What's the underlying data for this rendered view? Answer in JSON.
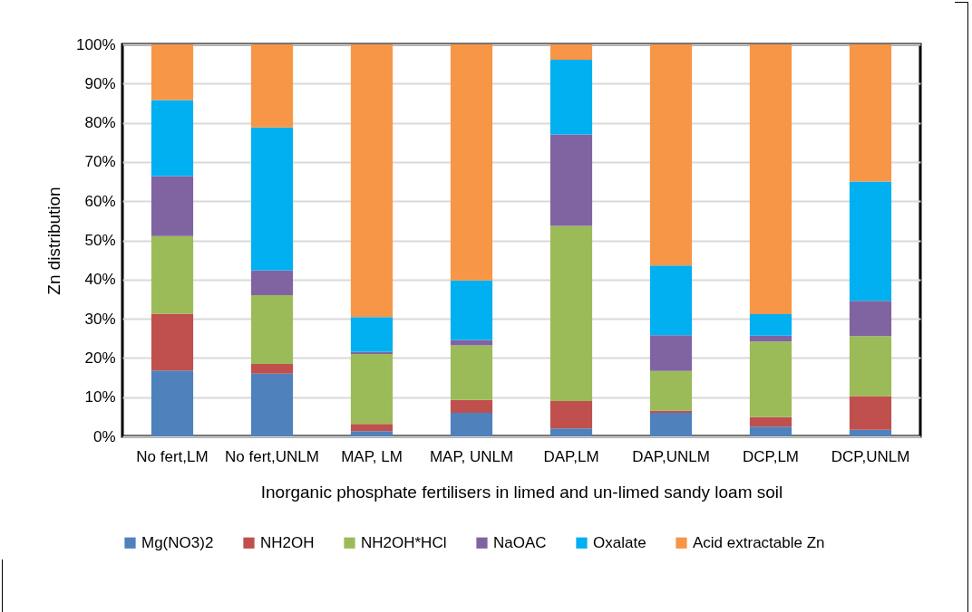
{
  "chart_data": {
    "type": "bar",
    "stacked": true,
    "xlabel": "Inorganic phosphate fertilisers in limed and un-limed sandy loam soil",
    "ylabel": "Zn distribution",
    "categories": [
      "No fert,LM",
      "No fert,UNLM",
      "MAP, LM",
      "MAP, UNLM",
      "DAP,LM",
      "DAP,UNLM",
      "DCP,LM",
      "DCP,UNLM"
    ],
    "series": [
      {
        "name": "Mg(NO3)2",
        "color": "#4f81bd",
        "values": [
          16.8,
          16.0,
          1.3,
          6.0,
          2.0,
          6.0,
          2.5,
          1.7
        ]
      },
      {
        "name": "NH2OH",
        "color": "#c0504d",
        "values": [
          14.5,
          2.5,
          1.9,
          3.3,
          7.0,
          0.6,
          2.4,
          8.6
        ]
      },
      {
        "name": "NH2OH*HCl",
        "color": "#9bbb59",
        "values": [
          19.8,
          17.5,
          17.8,
          13.9,
          44.7,
          10.1,
          19.3,
          15.3
        ]
      },
      {
        "name": "NaOAC",
        "color": "#8064a2",
        "values": [
          15.3,
          6.3,
          0.6,
          1.4,
          23.3,
          9.1,
          1.5,
          9.0
        ]
      },
      {
        "name": "Oxalate",
        "color": "#00b0f0",
        "values": [
          19.4,
          36.5,
          8.8,
          15.2,
          19.1,
          17.8,
          5.5,
          30.4
        ]
      },
      {
        "name": "Acid extractable Zn",
        "color": "#f79646",
        "values": [
          14.2,
          21.2,
          69.6,
          60.2,
          3.9,
          56.4,
          68.8,
          35.0
        ]
      }
    ],
    "ylim": [
      0,
      100
    ],
    "yticks": [
      {
        "value": 0,
        "label": "0%"
      },
      {
        "value": 10,
        "label": "10%"
      },
      {
        "value": 20,
        "label": "20%"
      },
      {
        "value": 30,
        "label": "30%"
      },
      {
        "value": 40,
        "label": "40%"
      },
      {
        "value": 50,
        "label": "50%"
      },
      {
        "value": 60,
        "label": "60%"
      },
      {
        "value": 70,
        "label": "70%"
      },
      {
        "value": 80,
        "label": "80%"
      },
      {
        "value": 90,
        "label": "90%"
      },
      {
        "value": 100,
        "label": "100%"
      }
    ],
    "grid": "y",
    "legend": "bottom"
  }
}
